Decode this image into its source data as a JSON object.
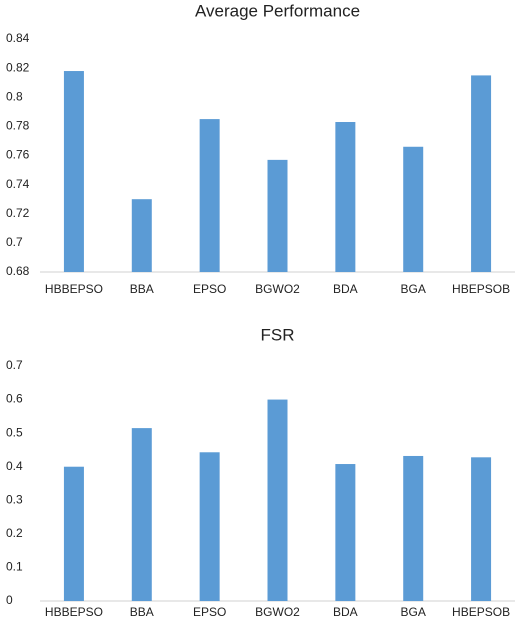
{
  "chart_data": [
    {
      "type": "bar",
      "title": "Average Performance",
      "categories": [
        "HBBEPSO",
        "BBA",
        "EPSO",
        "BGWO2",
        "BDA",
        "BGA",
        "HBEPSOB"
      ],
      "values": [
        0.818,
        0.73,
        0.785,
        0.757,
        0.783,
        0.766,
        0.815
      ],
      "color": "#5b9bd5",
      "ylim": [
        0.68,
        0.84
      ],
      "yticks": [
        0.68,
        0.7,
        0.72,
        0.74,
        0.76,
        0.78,
        0.8,
        0.82,
        0.84
      ],
      "grid": false
    },
    {
      "type": "bar",
      "title": "FSR",
      "categories": [
        "HBBEPSO",
        "BBA",
        "EPSO",
        "BGWO2",
        "BDA",
        "BGA",
        "HBEPSOB"
      ],
      "values": [
        0.4,
        0.515,
        0.443,
        0.6,
        0.408,
        0.432,
        0.428
      ],
      "color": "#5b9bd5",
      "ylim": [
        0,
        0.7
      ],
      "yticks": [
        0,
        0.1,
        0.2,
        0.3,
        0.4,
        0.5,
        0.6,
        0.7
      ],
      "grid": false
    }
  ]
}
